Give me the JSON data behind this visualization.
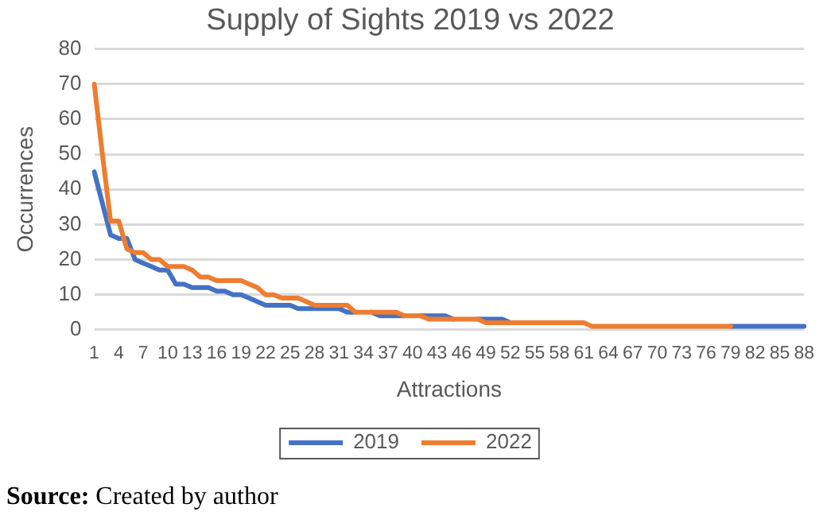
{
  "chart_data": {
    "type": "line",
    "title": "Supply of Sights 2019 vs 2022",
    "xlabel": "Attractions",
    "ylabel": "Occurrences",
    "categories": [
      "1",
      null,
      null,
      "4",
      null,
      null,
      "7",
      null,
      null,
      "10",
      null,
      null,
      "13",
      null,
      null,
      "16",
      null,
      null,
      "19",
      null,
      null,
      "22",
      null,
      null,
      "25",
      null,
      null,
      "28",
      null,
      null,
      "31",
      null,
      null,
      "34",
      null,
      null,
      "37",
      null,
      null,
      "40",
      null,
      null,
      "43",
      null,
      null,
      "46",
      null,
      null,
      "49",
      null,
      null,
      "52",
      null,
      null,
      "55",
      null,
      null,
      "58",
      null,
      null,
      "61",
      null,
      null,
      "64",
      null,
      null,
      "67",
      null,
      null,
      "70",
      null,
      null,
      "73",
      null,
      null,
      "76",
      null,
      null,
      "79",
      null,
      null,
      "82",
      null,
      null,
      "85",
      null,
      null,
      "88"
    ],
    "series": [
      {
        "name": "2019",
        "color": "#4472c4",
        "values": [
          45,
          36,
          27,
          26,
          26,
          20,
          19,
          18,
          17,
          17,
          13,
          13,
          12,
          12,
          12,
          11,
          11,
          10,
          10,
          9,
          8,
          7,
          7,
          7,
          7,
          6,
          6,
          6,
          6,
          6,
          6,
          5,
          5,
          null,
          5,
          4,
          4,
          4,
          4,
          null,
          4,
          4,
          4,
          4,
          3,
          null,
          null,
          3,
          3,
          3,
          3,
          2,
          null,
          null,
          null,
          null,
          null,
          null,
          null,
          null,
          null,
          null,
          null,
          null,
          null,
          null,
          null,
          null,
          null,
          null,
          null,
          null,
          null,
          null,
          null,
          null,
          null,
          null,
          1,
          1,
          1,
          1,
          1,
          1,
          1,
          1,
          1,
          1
        ]
      },
      {
        "name": "2022",
        "color": "#ed7d31",
        "values": [
          70,
          50,
          31,
          31,
          23,
          22,
          22,
          20,
          20,
          18,
          18,
          18,
          17,
          15,
          15,
          14,
          14,
          14,
          14,
          13,
          12,
          10,
          10,
          9,
          9,
          9,
          8,
          7,
          7,
          7,
          7,
          7,
          5,
          5,
          5,
          5,
          5,
          5,
          4,
          4,
          4,
          3,
          3,
          3,
          3,
          3,
          3,
          3,
          2,
          2,
          2,
          2,
          2,
          2,
          2,
          2,
          2,
          2,
          2,
          2,
          2,
          1,
          1,
          1,
          1,
          1,
          1,
          1,
          1,
          1,
          1,
          1,
          1,
          1,
          1,
          1,
          1,
          1,
          1,
          null,
          null,
          null,
          null,
          null,
          null,
          null,
          null,
          null
        ]
      }
    ],
    "ylim": [
      0,
      80
    ],
    "yticks": [
      0,
      10,
      20,
      30,
      40,
      50,
      60,
      70,
      80
    ],
    "grid": "y",
    "legend": "bottom",
    "marker": "none",
    "line_style": "solid",
    "annotations": [
      "Source: Created by author"
    ]
  }
}
